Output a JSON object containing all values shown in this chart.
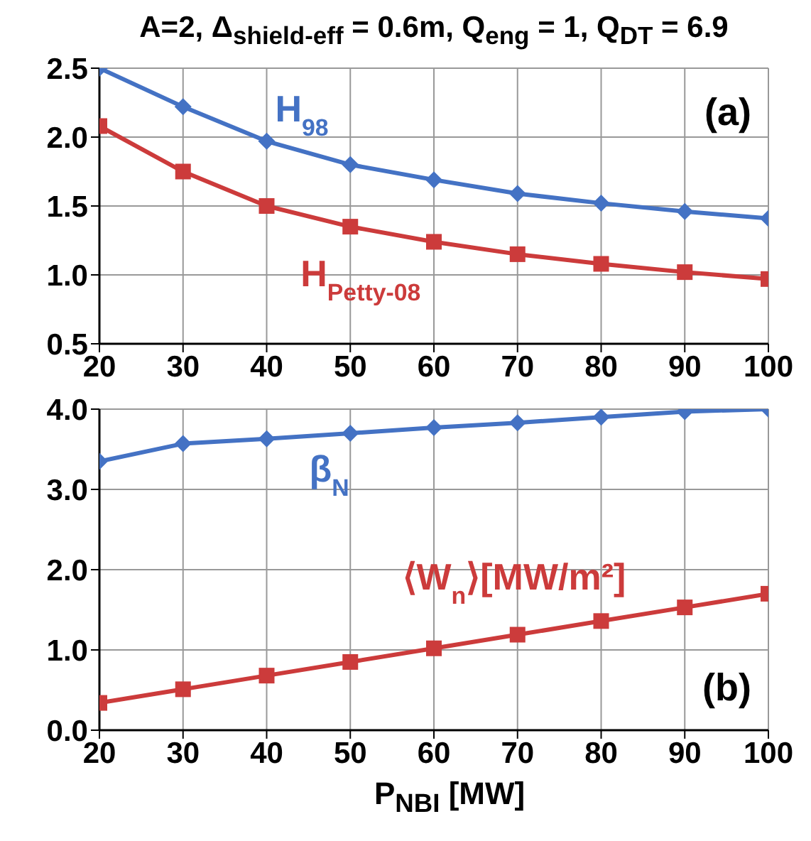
{
  "chart_data": [
    {
      "type": "line",
      "title": "A=2, Δ$_{shield-eff}$ = 0.6m, Q$_{eng}$ = 1, Q$_{DT}$ = 6.9",
      "x": [
        20,
        30,
        40,
        50,
        60,
        70,
        80,
        90,
        100
      ],
      "xlim": [
        20,
        100
      ],
      "xticks": [
        20,
        30,
        40,
        50,
        60,
        70,
        80,
        90,
        100
      ],
      "ylim": [
        0.5,
        2.5
      ],
      "yticks": [
        {
          "value": 0.5,
          "label": "0.5"
        },
        {
          "value": 1,
          "label": "1.0"
        },
        {
          "value": 1.5,
          "label": "1.5"
        },
        {
          "value": 2,
          "label": "2.0"
        },
        {
          "value": 2.5,
          "label": "2.5"
        }
      ],
      "grid": true,
      "annotations": [
        "(a)"
      ],
      "series": [
        {
          "name": "H$_{98}$",
          "color": "#4472c4",
          "marker": "diamond",
          "values": [
            2.5,
            2.22,
            1.97,
            1.8,
            1.69,
            1.59,
            1.52,
            1.46,
            1.41
          ]
        },
        {
          "name": "H$_{Petty-08}$",
          "color": "#cc3b3b",
          "marker": "square",
          "values": [
            2.08,
            1.75,
            1.5,
            1.35,
            1.24,
            1.15,
            1.08,
            1.02,
            0.97
          ]
        }
      ]
    },
    {
      "type": "line",
      "xlabel": "P$_{NBI}$ [MW]",
      "x": [
        20,
        30,
        40,
        50,
        60,
        70,
        80,
        90,
        100
      ],
      "xlim": [
        20,
        100
      ],
      "xticks": [
        20,
        30,
        40,
        50,
        60,
        70,
        80,
        90,
        100
      ],
      "ylim": [
        0,
        4
      ],
      "yticks": [
        {
          "value": 0,
          "label": "0.0"
        },
        {
          "value": 1,
          "label": "1.0"
        },
        {
          "value": 2,
          "label": "2.0"
        },
        {
          "value": 3,
          "label": "3.0"
        },
        {
          "value": 4,
          "label": "4.0"
        }
      ],
      "grid": true,
      "annotations": [
        "(b)"
      ],
      "series": [
        {
          "name": "β$_{N}$",
          "color": "#4472c4",
          "marker": "diamond",
          "values": [
            3.35,
            3.57,
            3.63,
            3.7,
            3.77,
            3.83,
            3.9,
            3.97,
            4.0
          ]
        },
        {
          "name": "⟨W$_{n}$⟩[MW/m²]",
          "color": "#cc3b3b",
          "marker": "square",
          "values": [
            0.34,
            0.51,
            0.68,
            0.85,
            1.02,
            1.19,
            1.36,
            1.53,
            1.7
          ]
        }
      ]
    }
  ]
}
